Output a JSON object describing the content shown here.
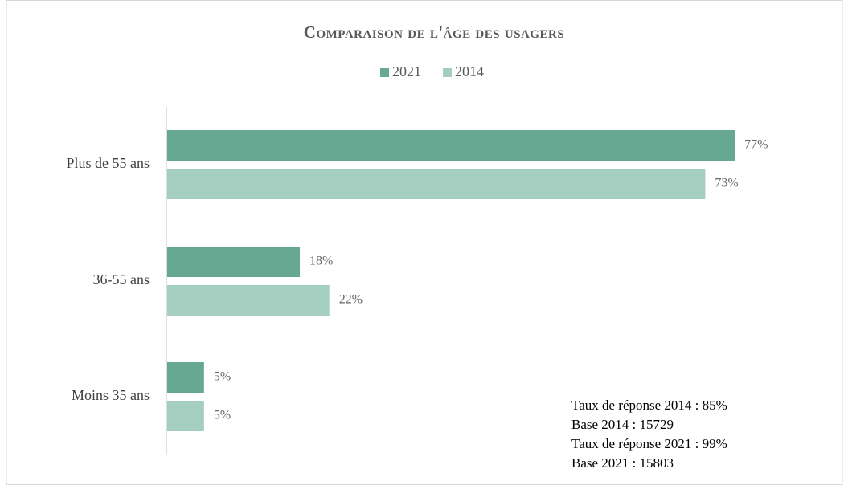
{
  "chart_data": {
    "type": "bar",
    "orientation": "horizontal",
    "title": "Comparaison de l'âge des usagers",
    "categories": [
      "Plus de 55 ans",
      "36-55 ans",
      "Moins 35 ans"
    ],
    "series": [
      {
        "name": "2021",
        "color": "#66a892",
        "values": [
          77,
          18,
          5
        ],
        "value_labels": [
          "77%",
          "18%",
          "5%"
        ]
      },
      {
        "name": "2014",
        "color": "#a4cfc0",
        "values": [
          73,
          22,
          5
        ],
        "value_labels": [
          "73%",
          "22%",
          "5%"
        ]
      }
    ],
    "legend": "top",
    "annotations": [
      "Taux de réponse 2014 : 85%",
      "Base 2014 : 15729",
      "Taux de réponse 2021 : 99%",
      "Base 2021 : 15803"
    ]
  }
}
